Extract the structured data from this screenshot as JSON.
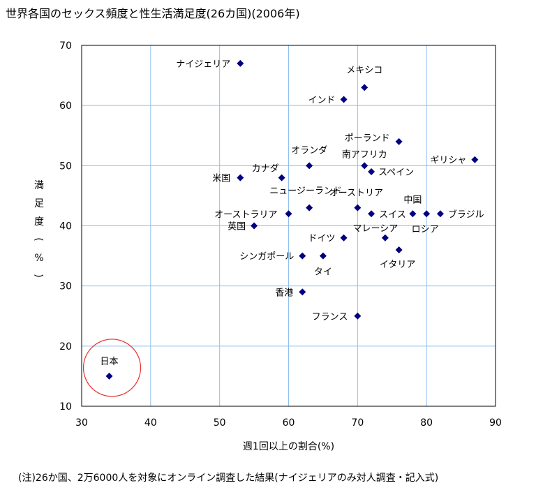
{
  "title": "世界各国のセックス頻度と性生活満足度(26カ国)(2006年)",
  "note": "(注)26か国、2万6000人を対象にオンライン調査した結果(ナイジェリアのみ対人調査・記入式)",
  "colors": {
    "marker": "#000080",
    "grid": "#8fc0ee",
    "highlight": "#e8302a"
  },
  "chart_data": {
    "type": "scatter",
    "xlabel": "週1回以上の割合(%)",
    "ylabel": "満足度(%)",
    "xlim": [
      30,
      90
    ],
    "ylim": [
      10,
      70
    ],
    "xticks": [
      "30",
      "40",
      "50",
      "60",
      "70",
      "80",
      "90"
    ],
    "yticks": [
      "10",
      "20",
      "30",
      "40",
      "50",
      "60",
      "70"
    ],
    "grid": true,
    "highlight_circle": "日本",
    "points": [
      {
        "label": "ナイジェリア",
        "x": 53,
        "y": 67
      },
      {
        "label": "メキシコ",
        "x": 71,
        "y": 63
      },
      {
        "label": "インド",
        "x": 68,
        "y": 61
      },
      {
        "label": "ポーランド",
        "x": 76,
        "y": 54
      },
      {
        "label": "ギリシャ",
        "x": 87,
        "y": 51
      },
      {
        "label": "オランダ",
        "x": 63,
        "y": 50
      },
      {
        "label": "南アフリカ",
        "x": 71,
        "y": 50
      },
      {
        "label": "スペイン",
        "x": 72,
        "y": 49
      },
      {
        "label": "カナダ",
        "x": 59,
        "y": 48
      },
      {
        "label": "米国",
        "x": 53,
        "y": 48
      },
      {
        "label": "ニュージーランド",
        "x": 63,
        "y": 43
      },
      {
        "label": "オーストリア",
        "x": 70,
        "y": 43
      },
      {
        "label": "中国",
        "x": 78,
        "y": 42
      },
      {
        "label": "オーストラリア",
        "x": 60,
        "y": 42
      },
      {
        "label": "スイス",
        "x": 72,
        "y": 42
      },
      {
        "label": "ロシア",
        "x": 80,
        "y": 42
      },
      {
        "label": "ブラジル",
        "x": 82,
        "y": 42
      },
      {
        "label": "英国",
        "x": 55,
        "y": 40
      },
      {
        "label": "マレーシア",
        "x": 74,
        "y": 38
      },
      {
        "label": "ドイツ",
        "x": 68,
        "y": 38
      },
      {
        "label": "イタリア",
        "x": 76,
        "y": 36
      },
      {
        "label": "シンガポール",
        "x": 62,
        "y": 35
      },
      {
        "label": "タイ",
        "x": 65,
        "y": 35
      },
      {
        "label": "香港",
        "x": 62,
        "y": 29
      },
      {
        "label": "フランス",
        "x": 70,
        "y": 25
      },
      {
        "label": "日本",
        "x": 34,
        "y": 15
      }
    ]
  }
}
